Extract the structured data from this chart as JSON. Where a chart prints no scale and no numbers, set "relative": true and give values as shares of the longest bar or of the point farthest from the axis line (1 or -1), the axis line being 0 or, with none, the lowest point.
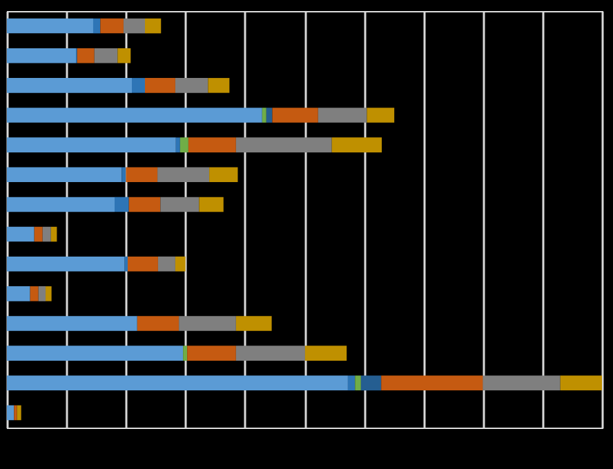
{
  "chart_data": {
    "type": "bar",
    "orientation": "horizontal",
    "stacked": true,
    "relative": true,
    "grid": "x",
    "legend": false,
    "tick_labels": false,
    "categories": [
      null,
      null,
      null,
      null,
      null,
      null,
      null,
      null,
      null,
      null,
      null,
      null,
      null,
      null
    ],
    "series": [
      {
        "color": "#5b9bd5",
        "values": [
          0.145,
          0.116,
          0.21,
          0.429,
          0.284,
          0.193,
          0.181,
          0.046,
          0.198,
          0.039,
          0.219,
          0.296,
          0.573,
          0.012
        ]
      },
      {
        "color": "#2e75b6",
        "values": [
          0.012,
          0.002,
          0.022,
          null,
          0.007,
          0.007,
          0.024,
          null,
          0.005,
          null,
          null,
          null,
          0.012,
          null
        ]
      },
      {
        "color": "#70ad47",
        "values": [
          null,
          null,
          null,
          0.007,
          0.014,
          null,
          null,
          null,
          null,
          null,
          null,
          0.007,
          0.01,
          null
        ]
      },
      {
        "color": "#255e91",
        "values": [
          null,
          null,
          null,
          0.01,
          null,
          null,
          null,
          null,
          null,
          null,
          null,
          null,
          0.034,
          null
        ]
      },
      {
        "color": "#c55a11",
        "values": [
          0.039,
          0.029,
          0.051,
          0.077,
          0.08,
          0.053,
          0.053,
          0.014,
          0.051,
          0.014,
          0.07,
          0.082,
          0.171,
          0.005
        ]
      },
      {
        "color": "#7f7f7f",
        "values": [
          0.036,
          0.039,
          0.055,
          0.082,
          0.161,
          0.087,
          0.065,
          0.014,
          0.029,
          0.012,
          0.096,
          0.116,
          0.13,
          null
        ]
      },
      {
        "color": "#bf9000",
        "values": [
          0.027,
          0.022,
          0.036,
          0.046,
          0.084,
          0.048,
          0.041,
          0.01,
          0.017,
          0.01,
          0.06,
          0.07,
          0.07,
          0.007
        ]
      }
    ]
  }
}
